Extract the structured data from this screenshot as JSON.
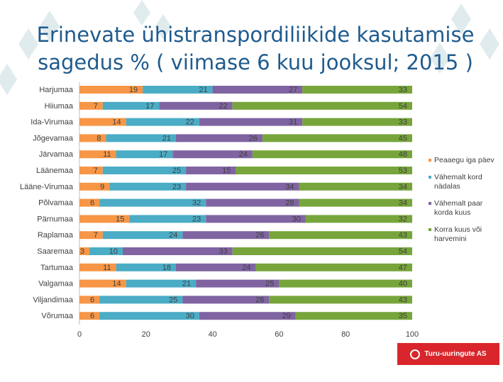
{
  "title": {
    "line1": "Erinevate ühistranspordiliikide kasutamise",
    "line2": "sagedus % ( viimase 6 kuu jooksul; 2015 )"
  },
  "logo": {
    "text": "Turu-uuringute AS"
  },
  "colors": {
    "title": "#1f5b8e",
    "brand": "#d9262c",
    "decor": "#dde9ed"
  },
  "chart_data": {
    "type": "bar",
    "orientation": "horizontal",
    "stacked": true,
    "title": "Erinevate ühistranspordiliikide kasutamise sagedus % ( viimase 6 kuu jooksul; 2015 )",
    "xlim": [
      0,
      100
    ],
    "xticks": [
      0,
      20,
      40,
      60,
      80,
      100
    ],
    "xlabel": "",
    "ylabel": "",
    "grid": false,
    "legend_position": "right",
    "categories": [
      "Harjumaa",
      "Hiiumaa",
      "Ida-Virumaa",
      "Jõgevamaa",
      "Järvamaa",
      "Läänemaa",
      "Lääne-Virumaa",
      "Põlvamaa",
      "Pärnumaa",
      "Raplamaa",
      "Saaremaa",
      "Tartumaa",
      "Valgamaa",
      "Viljandimaa",
      "Võrumaa"
    ],
    "series": [
      {
        "name": "Peaaegu iga päev",
        "color": "#f79646",
        "values": [
          19,
          7,
          14,
          8,
          11,
          7,
          9,
          6,
          15,
          7,
          3,
          11,
          14,
          6,
          6
        ]
      },
      {
        "name": "Vähemalt kord nädalas",
        "color": "#4bacc6",
        "values": [
          21,
          17,
          22,
          21,
          17,
          25,
          23,
          32,
          23,
          24,
          10,
          18,
          21,
          25,
          30
        ]
      },
      {
        "name": "Vähemalt paar korda kuus",
        "color": "#8064a2",
        "values": [
          27,
          22,
          31,
          26,
          24,
          15,
          34,
          28,
          30,
          26,
          33,
          24,
          25,
          26,
          29
        ]
      },
      {
        "name": "Korra kuus või harvemini",
        "color": "#77a53b",
        "values": [
          33,
          54,
          33,
          45,
          48,
          53,
          34,
          34,
          32,
          43,
          54,
          47,
          40,
          43,
          35
        ]
      }
    ]
  }
}
